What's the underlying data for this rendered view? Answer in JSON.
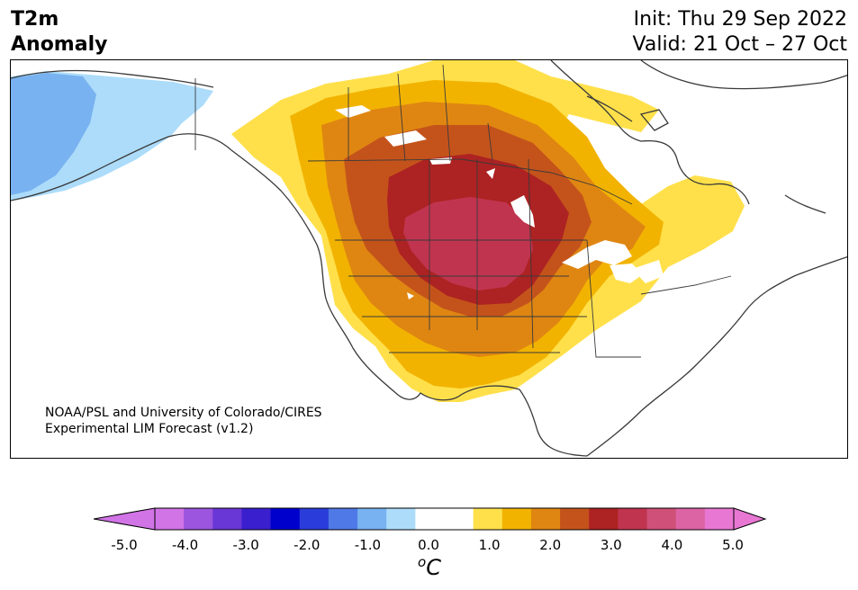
{
  "header": {
    "variable": "T2m",
    "subtitle": "Anomaly",
    "init": "Init: Thu 29 Sep 2022",
    "valid": "Valid: 21 Oct – 27 Oct"
  },
  "map": {
    "credit_line1": "NOAA/PSL and University of Colorado/CIRES",
    "credit_line2": "Experimental LIM Forecast (v1.2)",
    "region": "North America",
    "peak_anomaly_region": "Northern Plains / Dakotas",
    "cool_anomaly_region": "Alaska"
  },
  "colorbar": {
    "unit_symbol": "C",
    "unit_superscript": "o",
    "ticks": [
      "-5.0",
      "-4.0",
      "-3.0",
      "-2.0",
      "-1.0",
      "0.0",
      "1.0",
      "2.0",
      "3.0",
      "4.0",
      "5.0"
    ],
    "colors": [
      "#d174e6",
      "#9b55de",
      "#6937d6",
      "#3a1fcf",
      "#0000cc",
      "#2a3cd9",
      "#4f79e6",
      "#78b2f0",
      "#acdcfa",
      "#ffffff",
      "#ffffff",
      "#ffe04a",
      "#f2b300",
      "#df8612",
      "#c4531b",
      "#ad2222",
      "#c0344f",
      "#cf5078",
      "#dc64a4",
      "#e877d4"
    ],
    "extend_low_color": "#d174e6",
    "extend_high_color": "#e877d4"
  }
}
